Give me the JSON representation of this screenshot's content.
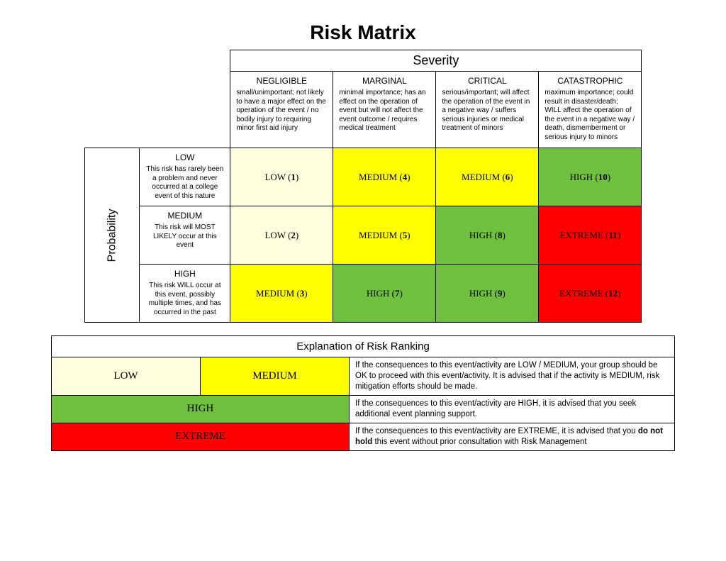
{
  "title": "Risk Matrix",
  "colors": {
    "low": "#ffffe0",
    "medium": "#ffff00",
    "high": "#70c040",
    "extreme": "#ff0000",
    "border": "#000000",
    "background": "#ffffff"
  },
  "axes": {
    "severity_label": "Severity",
    "probability_label": "Probability"
  },
  "severity": [
    {
      "title": "NEGLIGIBLE",
      "desc": "small/unimportant; not likely to have a major effect on the operation of the event / no bodily injury to requiring minor first aid injury"
    },
    {
      "title": "MARGINAL",
      "desc": "minimal importance; has an effect on the operation of event but will not affect the event outcome / requires medical treatment"
    },
    {
      "title": "CRITICAL",
      "desc": "serious/important; will affect the operation of the event in a negative way / suffers serious injuries or medical treatment of minors"
    },
    {
      "title": "CATASTROPHIC",
      "desc": "maximum importance; could result in disaster/death; WILL affect the operation of the event in a negative way / death, dismemberment or serious injury to minors"
    }
  ],
  "probability": [
    {
      "title": "LOW",
      "desc": "This risk has rarely been a problem and never occurred at a college event of this nature"
    },
    {
      "title": "MEDIUM",
      "desc": "This risk will MOST LIKELY occur at this event"
    },
    {
      "title": "HIGH",
      "desc": "This risk WILL occur at this event, possibly multiple times, and has occurred in the past"
    }
  ],
  "cells": [
    [
      {
        "label": "LOW",
        "num": "1",
        "level": "low"
      },
      {
        "label": "MEDIUM",
        "num": "4",
        "level": "medium"
      },
      {
        "label": "MEDIUM",
        "num": "6",
        "level": "medium"
      },
      {
        "label": "HIGH",
        "num": "10",
        "level": "high"
      }
    ],
    [
      {
        "label": "LOW",
        "num": "2",
        "level": "low"
      },
      {
        "label": "MEDIUM",
        "num": "5",
        "level": "medium"
      },
      {
        "label": "HIGH",
        "num": "8",
        "level": "high"
      },
      {
        "label": "EXTREME",
        "num": "11",
        "level": "extreme"
      }
    ],
    [
      {
        "label": "MEDIUM",
        "num": "3",
        "level": "medium"
      },
      {
        "label": "HIGH",
        "num": "7",
        "level": "high"
      },
      {
        "label": "HIGH",
        "num": "9",
        "level": "high"
      },
      {
        "label": "EXTREME",
        "num": "12",
        "level": "extreme"
      }
    ]
  ],
  "legend": {
    "header": "Explanation of Risk Ranking",
    "rows": [
      {
        "labels": [
          {
            "text": "LOW",
            "level": "low"
          },
          {
            "text": "MEDIUM",
            "level": "medium"
          }
        ],
        "desc": "If the consequences to this event/activity are LOW / MEDIUM, your group should be OK to proceed with this event/activity. It is advised that if the activity is MEDIUM, risk mitigation efforts should be made."
      },
      {
        "labels": [
          {
            "text": "HIGH",
            "level": "high"
          }
        ],
        "desc": "If the consequences to this event/activity are HIGH, it is advised that you seek additional event planning support."
      },
      {
        "labels": [
          {
            "text": "EXTREME",
            "level": "extreme"
          }
        ],
        "desc_html": "If the consequences to this event/activity are EXTREME, it is advised that you <b>do not hold</b> this event without prior consultation with Risk Management"
      }
    ]
  }
}
